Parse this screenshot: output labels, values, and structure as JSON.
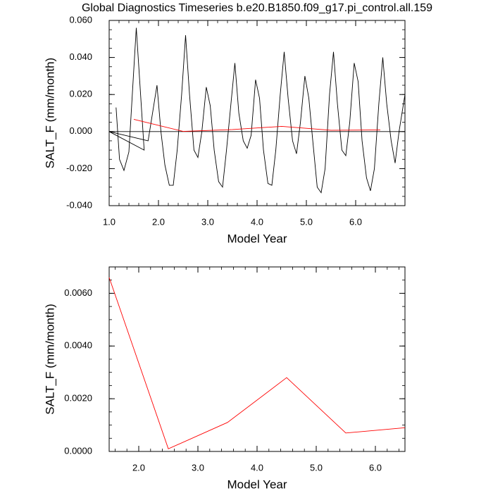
{
  "chart_data": [
    {
      "type": "line",
      "title": "Global Diagnostics Timeseries b.e20.B1850.f09_g17.pi_control.all.159",
      "x_label": "Model Year",
      "y_label": "SALT_F (mm/month)",
      "xlim": [
        1.0,
        7.0
      ],
      "xticks": [
        {
          "value": 1,
          "label": "1.0"
        },
        {
          "value": 2,
          "label": "2.0"
        },
        {
          "value": 3,
          "label": "3.0"
        },
        {
          "value": 4,
          "label": "4.0"
        },
        {
          "value": 5,
          "label": "5.0"
        },
        {
          "value": 6,
          "label": "6.0"
        }
      ],
      "ylim": [
        -0.04,
        0.06
      ],
      "yticks": [
        {
          "value": -0.04,
          "label": "-0.040"
        },
        {
          "value": -0.02,
          "label": "-0.020"
        },
        {
          "value": 0,
          "label": "0.000"
        },
        {
          "value": 0.02,
          "label": "0.020"
        },
        {
          "value": 0.04,
          "label": "0.040"
        },
        {
          "value": 0.06,
          "label": "0.060"
        }
      ],
      "hline": 0,
      "series": [
        {
          "color": "#000000",
          "x": [
            1.14,
            1.21,
            1.3,
            1.4,
            1.55,
            1.71,
            1.0,
            1.79,
            1.97,
            2.05,
            2.13,
            2.22,
            2.3,
            2.38,
            2.47,
            2.55,
            2.63,
            2.72,
            2.8,
            2.88,
            2.97,
            3.05,
            3.13,
            3.22,
            3.3,
            3.38,
            3.47,
            3.55,
            3.63,
            3.72,
            3.8,
            3.88,
            3.97,
            4.05,
            4.13,
            4.22,
            4.3,
            4.38,
            4.47,
            4.55,
            4.63,
            4.72,
            4.8,
            4.88,
            4.97,
            5.05,
            5.13,
            5.22,
            5.3,
            5.38,
            5.47,
            5.55,
            5.63,
            5.72,
            5.8,
            5.88,
            5.97,
            6.05,
            6.13,
            6.22,
            6.3,
            6.38,
            6.47,
            6.55,
            6.63,
            6.72,
            6.8,
            6.88,
            7.0
          ],
          "values": [
            0.013,
            -0.015,
            -0.021,
            -0.011,
            0.056,
            -0.01,
            0.0,
            -0.005,
            0.025,
            0.0,
            -0.018,
            -0.029,
            -0.029,
            -0.01,
            0.02,
            0.052,
            0.02,
            -0.01,
            -0.014,
            0.0,
            0.024,
            0.014,
            -0.01,
            -0.027,
            -0.03,
            -0.01,
            0.015,
            0.037,
            0.01,
            -0.005,
            -0.009,
            -0.002,
            0.028,
            0.018,
            -0.01,
            -0.028,
            -0.029,
            -0.01,
            0.02,
            0.043,
            0.018,
            -0.005,
            -0.012,
            0.005,
            0.03,
            0.018,
            -0.005,
            -0.03,
            -0.033,
            -0.02,
            0.02,
            0.043,
            0.015,
            -0.01,
            -0.013,
            0.005,
            0.037,
            0.027,
            -0.005,
            -0.025,
            -0.032,
            -0.02,
            0.015,
            0.04,
            0.015,
            -0.005,
            -0.017,
            0.0,
            0.02
          ]
        },
        {
          "color": "#ff0000",
          "x": [
            1.5,
            2.5,
            3.5,
            4.5,
            5.5,
            6.5
          ],
          "values": [
            0.0066,
            0.0001,
            0.0011,
            0.0028,
            0.0007,
            0.0009
          ]
        }
      ]
    },
    {
      "type": "line",
      "x_label": "Model Year",
      "y_label": "SALT_F (mm/month)",
      "xlim": [
        1.5,
        6.5
      ],
      "xticks": [
        {
          "value": 2,
          "label": "2.0"
        },
        {
          "value": 3,
          "label": "3.0"
        },
        {
          "value": 4,
          "label": "4.0"
        },
        {
          "value": 5,
          "label": "5.0"
        },
        {
          "value": 6,
          "label": "6.0"
        }
      ],
      "ylim": [
        0,
        0.007
      ],
      "yticks": [
        {
          "value": 0,
          "label": "0.0000"
        },
        {
          "value": 0.002,
          "label": "0.0020"
        },
        {
          "value": 0.004,
          "label": "0.0040"
        },
        {
          "value": 0.006,
          "label": "0.0060"
        }
      ],
      "series": [
        {
          "color": "#ff0000",
          "x": [
            1.5,
            2.5,
            3.5,
            4.5,
            5.5,
            6.5
          ],
          "values": [
            0.0066,
            0.0001,
            0.0011,
            0.0028,
            0.0007,
            0.0009
          ]
        }
      ]
    }
  ]
}
